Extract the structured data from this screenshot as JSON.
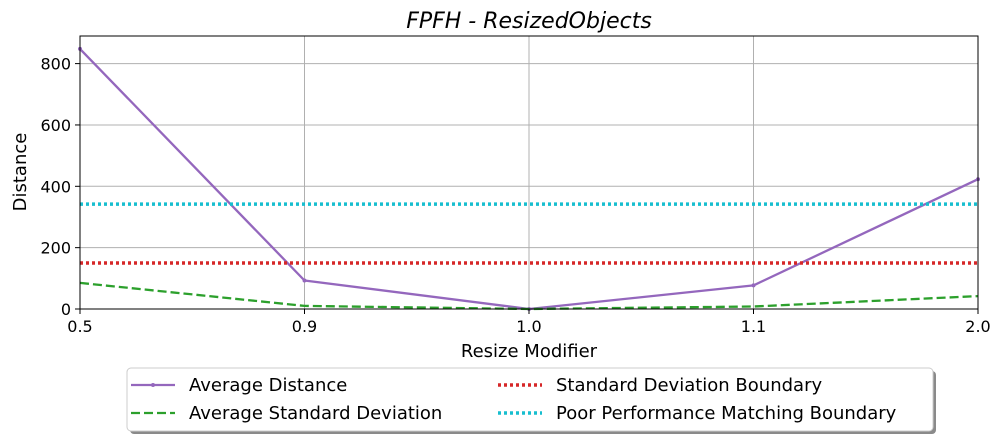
{
  "chart_data": {
    "type": "line",
    "title": "FPFH - ResizedObjects",
    "xlabel": "Resize Modifier",
    "ylabel": "Distance",
    "categories": [
      "0.5",
      "0.9",
      "1.0",
      "1.1",
      "2.0"
    ],
    "ylim": [
      0,
      890
    ],
    "yticks": [
      0,
      200,
      400,
      600,
      800
    ],
    "grid": true,
    "legend_position": "bottom-center",
    "series": [
      {
        "name": "Average Distance",
        "style": "solid-marker",
        "color": "#9467bd",
        "values": [
          848,
          93,
          0,
          77,
          423
        ]
      },
      {
        "name": "Average Standard Deviation",
        "style": "dashed",
        "color": "#2ca02c",
        "values": [
          85,
          10,
          0,
          8,
          42
        ]
      },
      {
        "name": "Standard Deviation Boundary",
        "style": "dotted",
        "color": "#d62728",
        "values": [
          150,
          150,
          150,
          150,
          150
        ]
      },
      {
        "name": "Poor Performance Matching Boundary",
        "style": "dotted",
        "color": "#17becf",
        "values": [
          342,
          342,
          342,
          342,
          342
        ]
      }
    ]
  }
}
